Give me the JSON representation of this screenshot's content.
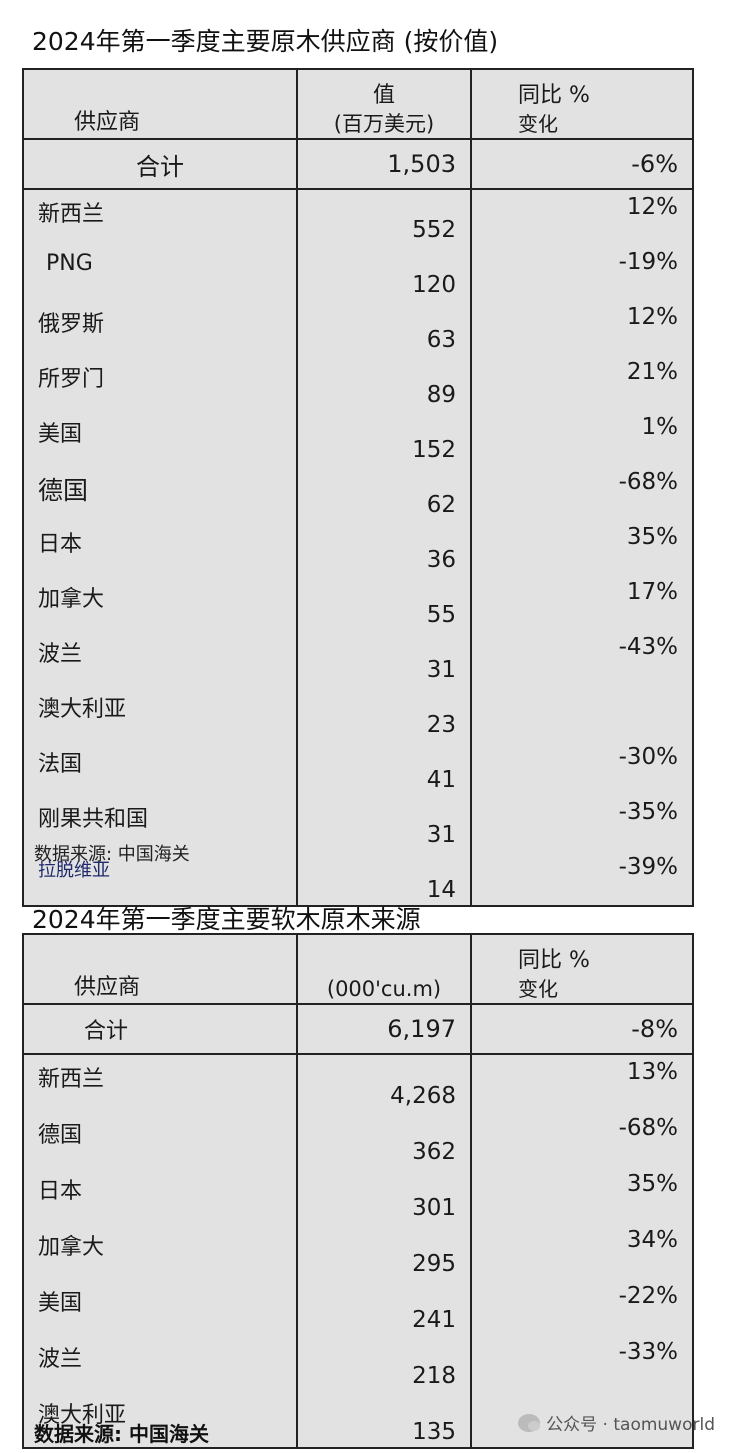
{
  "table1": {
    "title": "2024年第一季度主要原木供应商 (按价值)",
    "headers": {
      "name": "供应商",
      "value_line1": "值",
      "value_line2": "(百万美元)",
      "yoy_line1": "同比 %",
      "yoy_line2": "变化"
    },
    "total": {
      "name": "合计",
      "value": "1,503",
      "yoy": "-6%"
    },
    "rows": [
      {
        "name": "新西兰",
        "value": "552",
        "yoy": "12%"
      },
      {
        "name": "PNG",
        "value": "120",
        "yoy": "-19%"
      },
      {
        "name": "俄罗斯",
        "value": "63",
        "yoy": "12%"
      },
      {
        "name": "所罗门",
        "value": "89",
        "yoy": "21%"
      },
      {
        "name": "美国",
        "value": "152",
        "yoy": "1%"
      },
      {
        "name": "德国",
        "value": "62",
        "yoy": "-68%"
      },
      {
        "name": "日本",
        "value": "36",
        "yoy": "35%"
      },
      {
        "name": "加拿大",
        "value": "55",
        "yoy": "17%"
      },
      {
        "name": "波兰",
        "value": "31",
        "yoy": "-43%"
      },
      {
        "name": "澳大利亚",
        "value": "23",
        "yoy": ""
      },
      {
        "name": "法国",
        "value": "41",
        "yoy": "-30%"
      },
      {
        "name": "刚果共和国",
        "value": "31",
        "yoy": "-35%"
      },
      {
        "name": "拉脱维亚",
        "value": "14",
        "yoy": "-39%"
      }
    ],
    "source": "数据来源: 中国海关"
  },
  "table2": {
    "title": "2024年第一季度主要软木原木来源",
    "headers": {
      "name": "供应商",
      "value_line1": "(000'cu.m)",
      "yoy_line1": "同比 %",
      "yoy_line2": "变化"
    },
    "total": {
      "name": "合计",
      "value": "6,197",
      "yoy": "-8%"
    },
    "rows": [
      {
        "name": "新西兰",
        "value": "4,268",
        "yoy": "13%"
      },
      {
        "name": "德国",
        "value": "362",
        "yoy": "-68%"
      },
      {
        "name": "日本",
        "value": "301",
        "yoy": "35%"
      },
      {
        "name": "加拿大",
        "value": "295",
        "yoy": "34%"
      },
      {
        "name": "美国",
        "value": "241",
        "yoy": "-22%"
      },
      {
        "name": "波兰",
        "value": "218",
        "yoy": "-33%"
      },
      {
        "name": "澳大利亚",
        "value": "135",
        "yoy": ""
      }
    ],
    "source": "数据来源: 中国海关"
  },
  "watermark": "公众号 · taomuworld"
}
